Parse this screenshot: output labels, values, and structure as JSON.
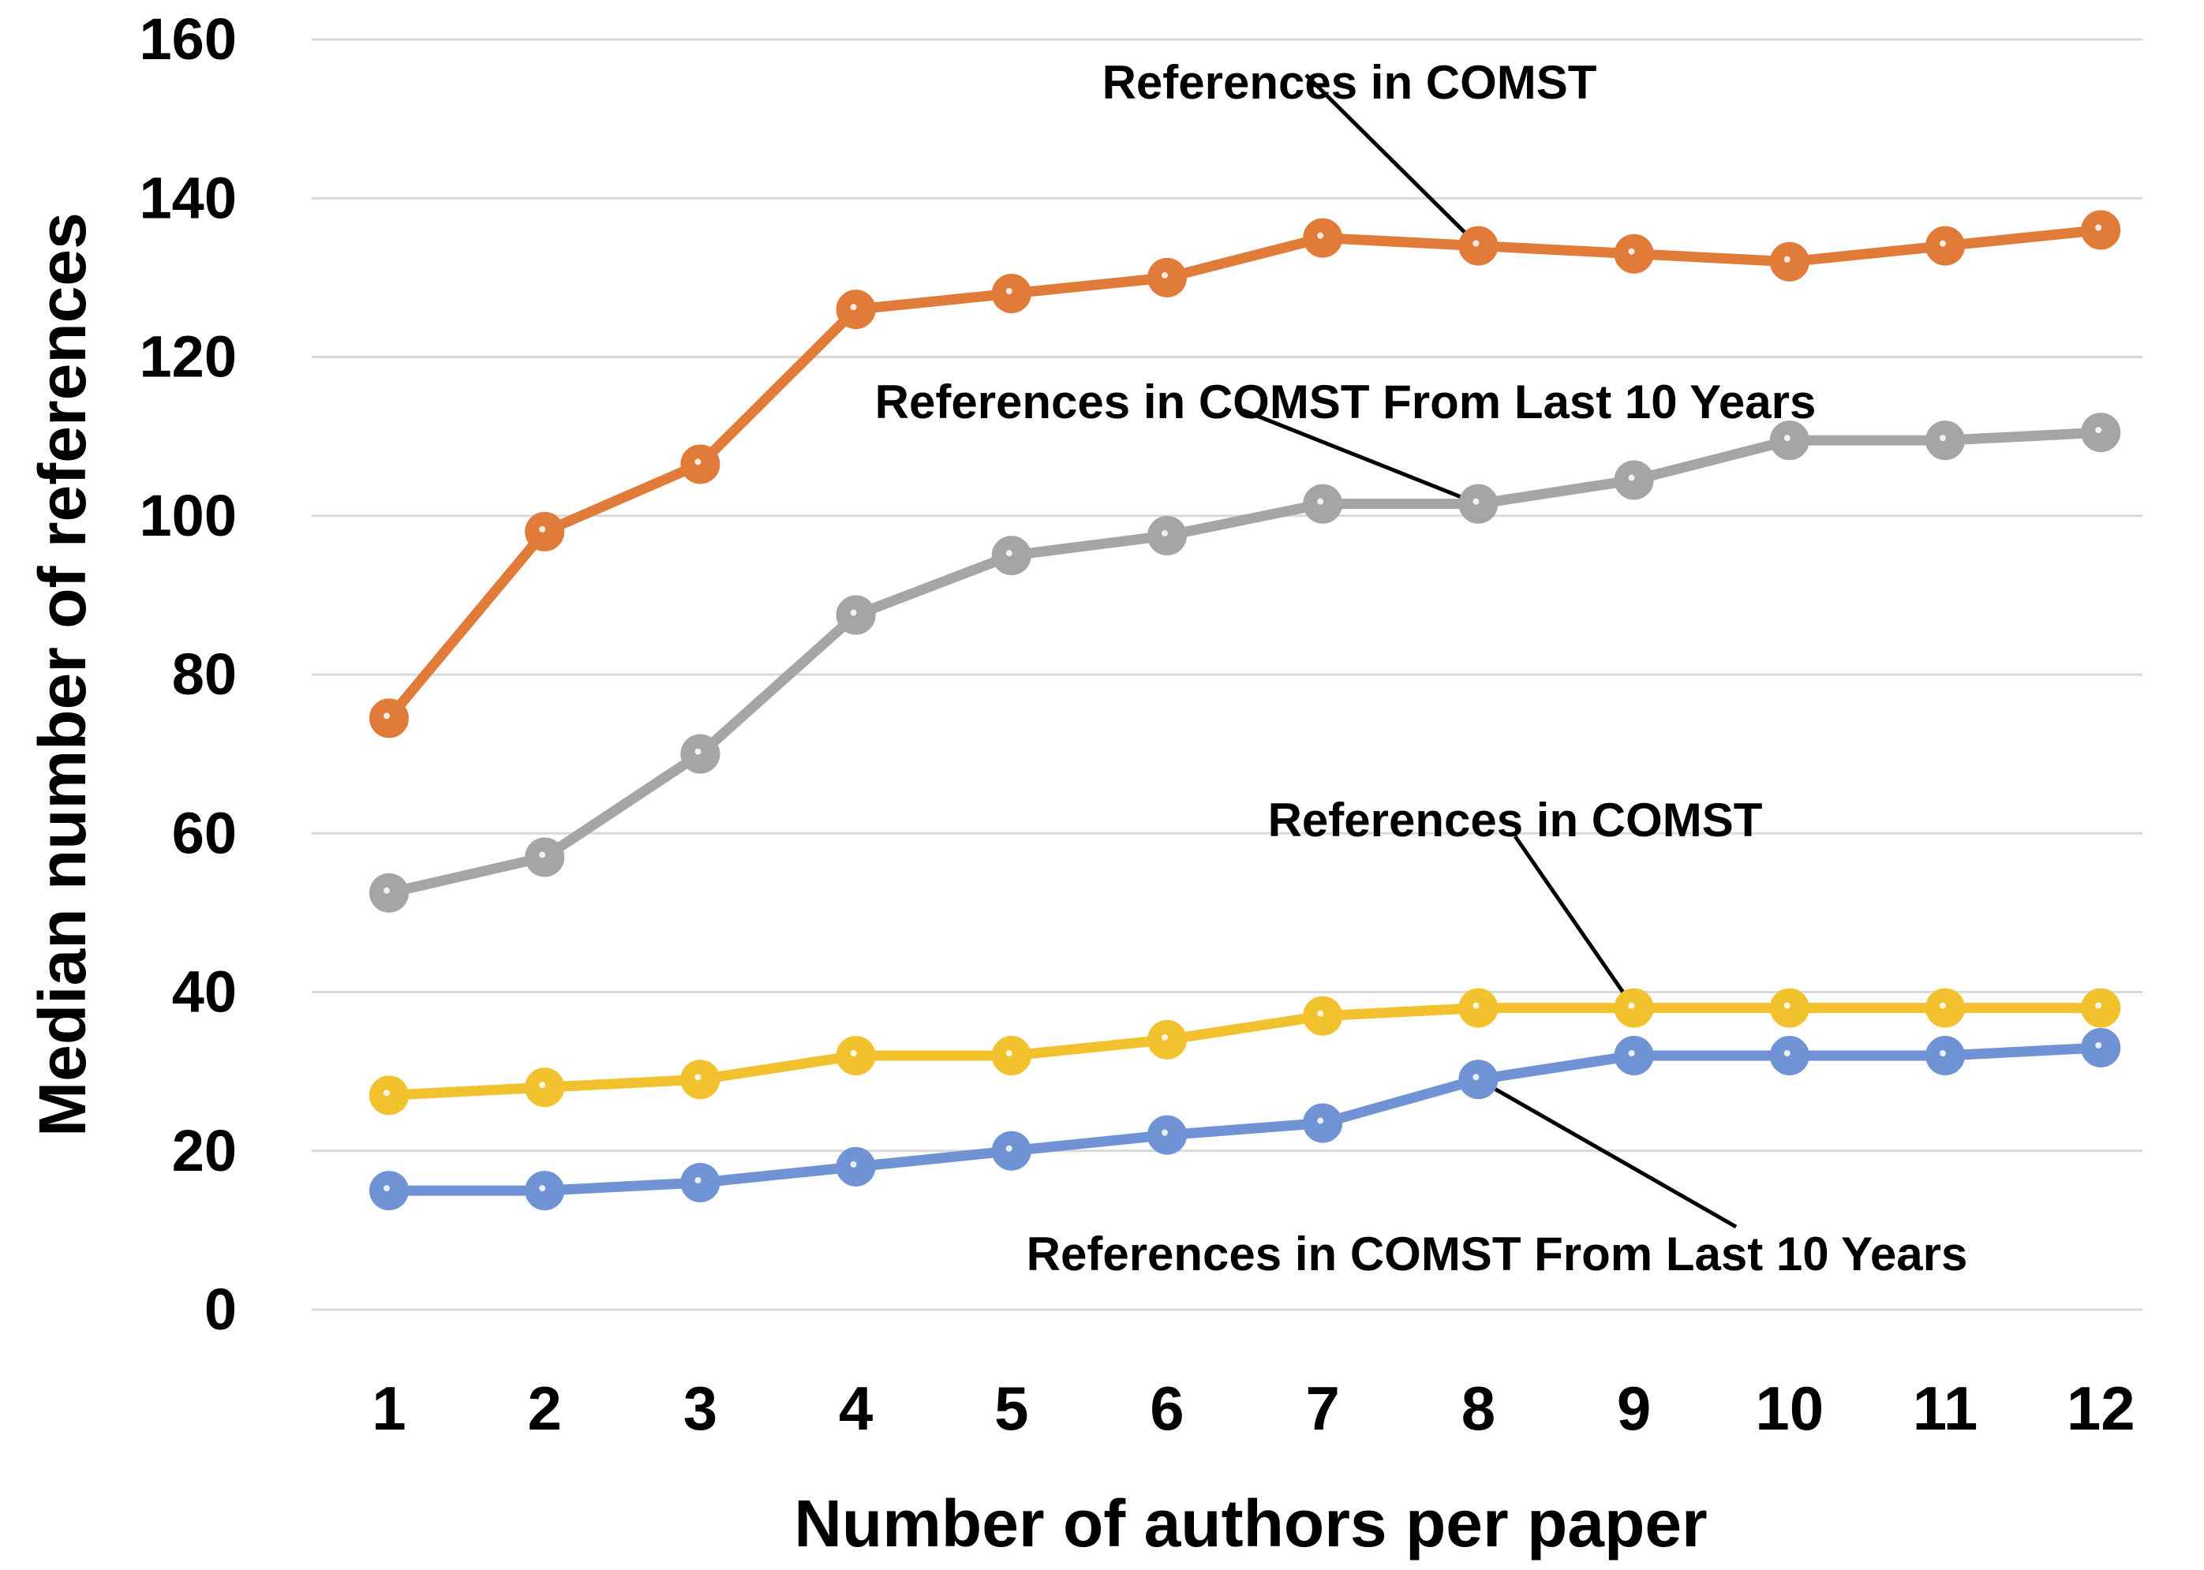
{
  "chart_data": {
    "type": "line",
    "title": "",
    "xlabel": "Number of authors per paper",
    "ylabel": "Median number of references",
    "x": [
      1,
      2,
      3,
      4,
      5,
      6,
      7,
      8,
      9,
      10,
      11,
      12
    ],
    "xtick_labels": [
      "1",
      "2",
      "3",
      "4",
      "5",
      "6",
      "7",
      "8",
      "9",
      "10",
      "11",
      "12"
    ],
    "ylim": [
      0,
      160
    ],
    "yticks": [
      0,
      20,
      40,
      60,
      80,
      100,
      120,
      140,
      160
    ],
    "ytick_labels": [
      "0",
      "20",
      "40",
      "60",
      "80",
      "100",
      "120",
      "140",
      "160"
    ],
    "grid": "horizontal",
    "legend": "none",
    "series": [
      {
        "color": "#E07B39",
        "values": [
          74.5,
          98,
          106.5,
          126,
          128,
          130,
          135,
          134,
          133,
          132,
          134,
          136
        ]
      },
      {
        "color": "#A5A5A5",
        "values": [
          52.5,
          57,
          70,
          87.5,
          95,
          97.5,
          101.5,
          101.5,
          104.5,
          109.5,
          109.5,
          110.5
        ]
      },
      {
        "color": "#F2C12E",
        "values": [
          27,
          28,
          29,
          32,
          32,
          34,
          37,
          38,
          38,
          38,
          38,
          38
        ]
      },
      {
        "color": "#6F93D4",
        "values": [
          15,
          15,
          16,
          18,
          20,
          22,
          23.5,
          29,
          32,
          32,
          32,
          33
        ]
      }
    ],
    "annotations": [
      {
        "text": "References in COMST",
        "series": 0,
        "point_x": 8
      },
      {
        "text": "References in COMST From Last 10 Years",
        "series": 1,
        "point_x": 8
      },
      {
        "text": "References in COMST",
        "series": 2,
        "point_x": 9
      },
      {
        "text": "References in COMST From Last 10 Years",
        "series": 3,
        "point_x": 8
      }
    ]
  }
}
